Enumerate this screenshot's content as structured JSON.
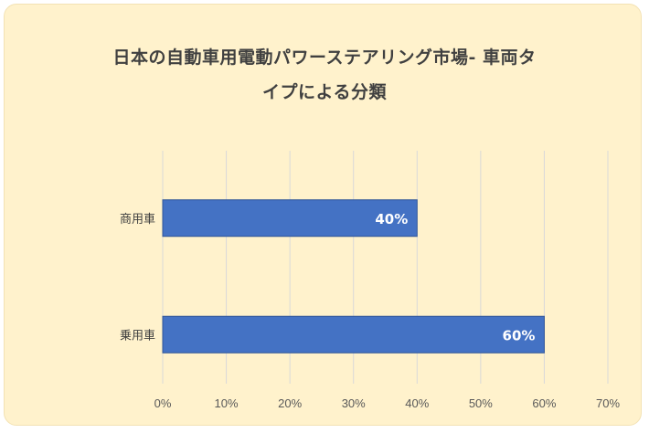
{
  "chart_data": {
    "type": "bar",
    "orientation": "horizontal",
    "title_lines": [
      "日本の自動車用電動パワーステアリング市場- 車両タ",
      "イプによる分類"
    ],
    "categories": [
      "商用車",
      "乗用車"
    ],
    "values": [
      0.4,
      0.6
    ],
    "data_labels": [
      "40%",
      "60%"
    ],
    "xlim": [
      0,
      0.7
    ],
    "x_ticks": [
      "0%",
      "10%",
      "20%",
      "30%",
      "40%",
      "50%",
      "60%",
      "70%"
    ],
    "grid": "vertical",
    "legend": "none",
    "colors": {
      "bar": "#4472c4",
      "background": "#fff2cc"
    }
  }
}
